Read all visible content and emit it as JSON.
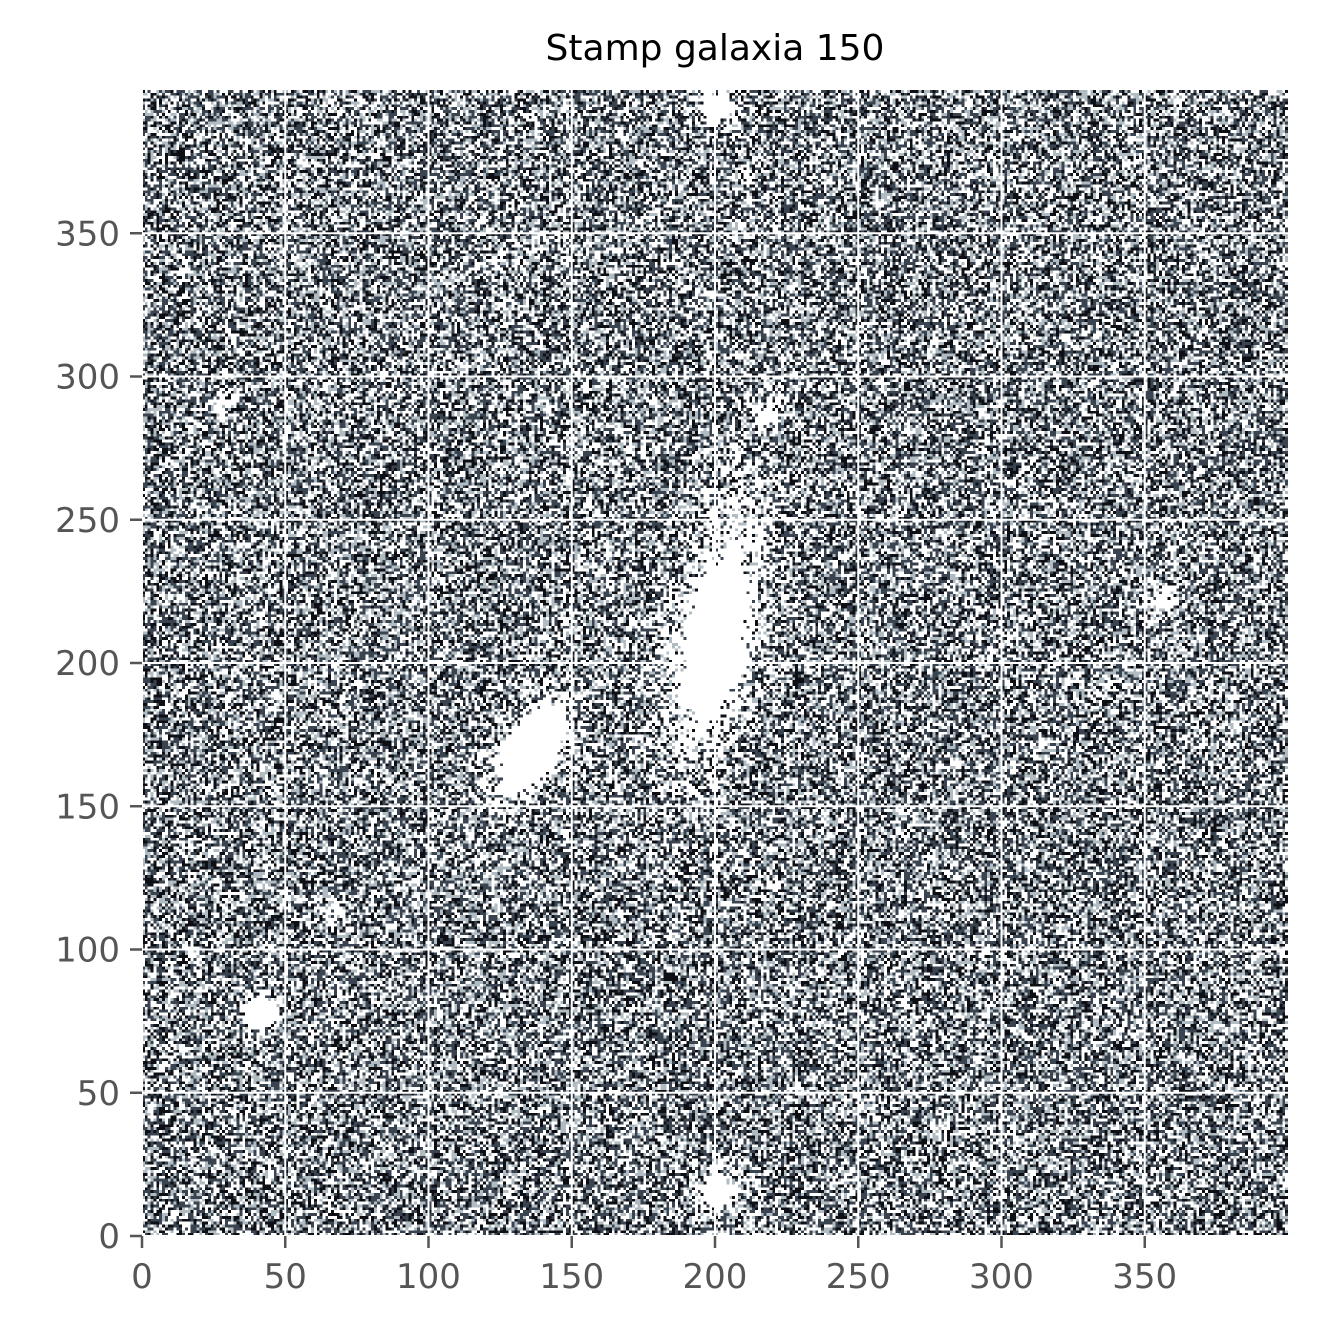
{
  "chart_data": {
    "type": "heatmap",
    "title": "Stamp galaxia 150",
    "xlabel": "",
    "ylabel": "",
    "image_size": [
      400,
      400
    ],
    "xlim": [
      0,
      400
    ],
    "ylim": [
      0,
      400
    ],
    "x_ticks": [
      0,
      50,
      100,
      150,
      200,
      250,
      300,
      350
    ],
    "y_ticks": [
      0,
      50,
      100,
      150,
      200,
      250,
      300,
      350
    ],
    "grid": true,
    "grid_color": "#ffffff",
    "colormap": [
      "#ffffff",
      "#b0bcc2",
      "#3a4450",
      "#0d0f14"
    ],
    "noise_levels": [
      0.32,
      0.2,
      0.26,
      0.22
    ],
    "sources": [
      {
        "x": 200,
        "y": 210,
        "sigma_x": 10,
        "sigma_y": 32,
        "angle_deg": 12,
        "amplitude": 1.4
      },
      {
        "x": 136,
        "y": 170,
        "sigma_x": 6,
        "sigma_y": 13,
        "angle_deg": 30,
        "amplitude": 2.2
      },
      {
        "x": 41,
        "y": 77,
        "sigma_x": 4,
        "sigma_y": 4,
        "angle_deg": 0,
        "amplitude": 2.0
      },
      {
        "x": 200,
        "y": 15,
        "sigma_x": 4.5,
        "sigma_y": 5,
        "angle_deg": 0,
        "amplitude": 1.6
      },
      {
        "x": 200,
        "y": 393,
        "sigma_x": 4.5,
        "sigma_y": 4,
        "angle_deg": 0,
        "amplitude": 1.5
      },
      {
        "x": 218,
        "y": 287,
        "sigma_x": 3.5,
        "sigma_y": 3.5,
        "angle_deg": 0,
        "amplitude": 1.0
      },
      {
        "x": 356,
        "y": 222,
        "sigma_x": 4,
        "sigma_y": 4,
        "angle_deg": 0,
        "amplitude": 1.0
      },
      {
        "x": 28,
        "y": 290,
        "sigma_x": 3,
        "sigma_y": 3,
        "angle_deg": 0,
        "amplitude": 0.8
      },
      {
        "x": 66,
        "y": 112,
        "sigma_x": 3,
        "sigma_y": 3,
        "angle_deg": 0,
        "amplitude": 0.8
      },
      {
        "x": 210,
        "y": 370,
        "sigma_x": 3,
        "sigma_y": 3,
        "angle_deg": 0,
        "amplitude": 0.7
      }
    ]
  }
}
